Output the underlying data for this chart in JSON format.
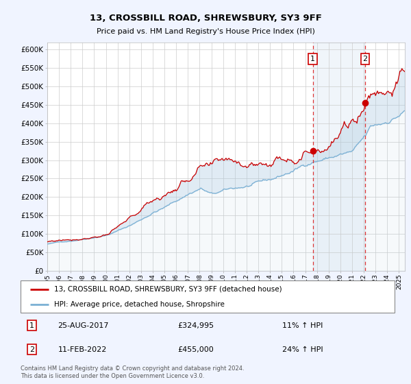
{
  "title": "13, CROSSBILL ROAD, SHREWSBURY, SY3 9FF",
  "subtitle": "Price paid vs. HM Land Registry's House Price Index (HPI)",
  "legend_line1": "13, CROSSBILL ROAD, SHREWSBURY, SY3 9FF (detached house)",
  "legend_line2": "HPI: Average price, detached house, Shropshire",
  "annotation1_date": "25-AUG-2017",
  "annotation1_price": "£324,995",
  "annotation1_hpi": "11% ↑ HPI",
  "annotation1_year": 2017.65,
  "annotation1_value": 324995,
  "annotation2_date": "11-FEB-2022",
  "annotation2_price": "£455,000",
  "annotation2_hpi": "24% ↑ HPI",
  "annotation2_year": 2022.12,
  "annotation2_value": 455000,
  "footer": "Contains HM Land Registry data © Crown copyright and database right 2024.\nThis data is licensed under the Open Government Licence v3.0.",
  "ylim": [
    0,
    620000
  ],
  "xlim_start": 1995.0,
  "xlim_end": 2025.5,
  "background_color": "#f0f4ff",
  "plot_bg": "#ffffff",
  "line_color_red": "#cc0000",
  "line_color_blue": "#7ab0d4",
  "grid_color": "#cccccc",
  "vline_color": "#dd3333",
  "highlight_x1": 2017.65,
  "highlight_x2": 2022.12
}
